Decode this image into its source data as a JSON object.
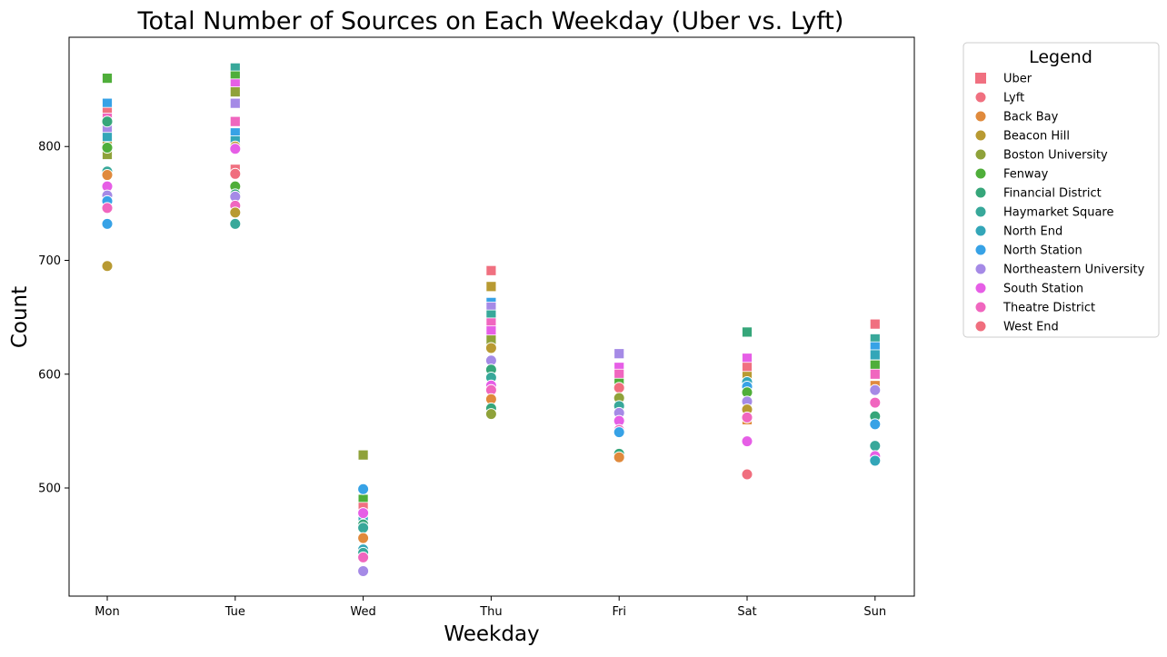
{
  "chart_data": {
    "type": "scatter",
    "title": "Total Number of Sources on Each Weekday (Uber vs. Lyft)",
    "xlabel": "Weekday",
    "ylabel": "Count",
    "categories": [
      "Mon",
      "Tue",
      "Wed",
      "Thu",
      "Fri",
      "Sat",
      "Sun"
    ],
    "ylim": [
      405,
      896
    ],
    "yticks": [
      500,
      600,
      700,
      800
    ],
    "grid": false,
    "legend": {
      "title": "Legend",
      "placement": "outside-right",
      "entries": [
        {
          "label": "Uber",
          "marker": "square",
          "color": "#f07080"
        },
        {
          "label": "Lyft",
          "marker": "circle",
          "color": "#f07080"
        },
        {
          "label": "Back Bay",
          "marker": "circle",
          "color": "#e08a3c"
        },
        {
          "label": "Beacon Hill",
          "marker": "circle",
          "color": "#b89a32"
        },
        {
          "label": "Boston University",
          "marker": "circle",
          "color": "#8fa23a"
        },
        {
          "label": "Fenway",
          "marker": "circle",
          "color": "#4fae3a"
        },
        {
          "label": "Financial District",
          "marker": "circle",
          "color": "#36a67a"
        },
        {
          "label": "Haymarket Square",
          "marker": "circle",
          "color": "#38a89a"
        },
        {
          "label": "North End",
          "marker": "circle",
          "color": "#33a6b8"
        },
        {
          "label": "North Station",
          "marker": "circle",
          "color": "#37a2e6"
        },
        {
          "label": "Northeastern University",
          "marker": "circle",
          "color": "#a58ae6"
        },
        {
          "label": "South Station",
          "marker": "circle",
          "color": "#e65ee6"
        },
        {
          "label": "Theatre District",
          "marker": "circle",
          "color": "#f066bf"
        },
        {
          "label": "West End",
          "marker": "circle",
          "color": "#f06e7e"
        }
      ]
    },
    "series": [
      {
        "name": "Uber",
        "marker": "square",
        "points": [
          {
            "x": "Mon",
            "y": 860,
            "color": "#4fae3a"
          },
          {
            "x": "Mon",
            "y": 838,
            "color": "#37a2e6"
          },
          {
            "x": "Mon",
            "y": 830,
            "color": "#f07080"
          },
          {
            "x": "Mon",
            "y": 825,
            "color": "#f066bf"
          },
          {
            "x": "Mon",
            "y": 815,
            "color": "#a58ae6"
          },
          {
            "x": "Mon",
            "y": 808,
            "color": "#33a6b8"
          },
          {
            "x": "Mon",
            "y": 800,
            "color": "#b89a32"
          },
          {
            "x": "Mon",
            "y": 793,
            "color": "#8fa23a"
          },
          {
            "x": "Tue",
            "y": 869,
            "color": "#38a89a"
          },
          {
            "x": "Tue",
            "y": 862,
            "color": "#4fae3a"
          },
          {
            "x": "Tue",
            "y": 855,
            "color": "#e65ee6"
          },
          {
            "x": "Tue",
            "y": 848,
            "color": "#8fa23a"
          },
          {
            "x": "Tue",
            "y": 838,
            "color": "#a58ae6"
          },
          {
            "x": "Tue",
            "y": 822,
            "color": "#f066bf"
          },
          {
            "x": "Tue",
            "y": 812,
            "color": "#37a2e6"
          },
          {
            "x": "Tue",
            "y": 805,
            "color": "#33a6b8"
          },
          {
            "x": "Tue",
            "y": 780,
            "color": "#f07080"
          },
          {
            "x": "Wed",
            "y": 529,
            "color": "#8fa23a"
          },
          {
            "x": "Wed",
            "y": 490,
            "color": "#4fae3a"
          },
          {
            "x": "Wed",
            "y": 483,
            "color": "#f07080"
          },
          {
            "x": "Wed",
            "y": 475,
            "color": "#33a6b8"
          },
          {
            "x": "Thu",
            "y": 691,
            "color": "#f07080"
          },
          {
            "x": "Thu",
            "y": 677,
            "color": "#b89a32"
          },
          {
            "x": "Thu",
            "y": 663,
            "color": "#37a2e6"
          },
          {
            "x": "Thu",
            "y": 659,
            "color": "#a58ae6"
          },
          {
            "x": "Thu",
            "y": 652,
            "color": "#38a89a"
          },
          {
            "x": "Thu",
            "y": 645,
            "color": "#f066bf"
          },
          {
            "x": "Thu",
            "y": 638,
            "color": "#e65ee6"
          },
          {
            "x": "Thu",
            "y": 630,
            "color": "#8fa23a"
          },
          {
            "x": "Fri",
            "y": 618,
            "color": "#a58ae6"
          },
          {
            "x": "Fri",
            "y": 606,
            "color": "#e65ee6"
          },
          {
            "x": "Fri",
            "y": 600,
            "color": "#f066bf"
          },
          {
            "x": "Fri",
            "y": 592,
            "color": "#4fae3a"
          },
          {
            "x": "Sat",
            "y": 637,
            "color": "#36a67a"
          },
          {
            "x": "Sat",
            "y": 614,
            "color": "#e65ee6"
          },
          {
            "x": "Sat",
            "y": 606,
            "color": "#f07080"
          },
          {
            "x": "Sat",
            "y": 598,
            "color": "#b89a32"
          },
          {
            "x": "Sat",
            "y": 560,
            "color": "#e08a3c"
          },
          {
            "x": "Sun",
            "y": 644,
            "color": "#f07080"
          },
          {
            "x": "Sun",
            "y": 631,
            "color": "#38a89a"
          },
          {
            "x": "Sun",
            "y": 624,
            "color": "#37a2e6"
          },
          {
            "x": "Sun",
            "y": 617,
            "color": "#33a6b8"
          },
          {
            "x": "Sun",
            "y": 608,
            "color": "#4fae3a"
          },
          {
            "x": "Sun",
            "y": 600,
            "color": "#f066bf"
          },
          {
            "x": "Sun",
            "y": 590,
            "color": "#e08a3c"
          }
        ]
      },
      {
        "name": "Lyft",
        "marker": "circle",
        "points": [
          {
            "x": "Mon",
            "y": 822,
            "color": "#36a67a"
          },
          {
            "x": "Mon",
            "y": 799,
            "color": "#4fae3a"
          },
          {
            "x": "Mon",
            "y": 778,
            "color": "#38a89a"
          },
          {
            "x": "Mon",
            "y": 775,
            "color": "#e08a3c"
          },
          {
            "x": "Mon",
            "y": 765,
            "color": "#e65ee6"
          },
          {
            "x": "Mon",
            "y": 757,
            "color": "#a58ae6"
          },
          {
            "x": "Mon",
            "y": 752,
            "color": "#37a2e6"
          },
          {
            "x": "Mon",
            "y": 746,
            "color": "#f066bf"
          },
          {
            "x": "Mon",
            "y": 732,
            "color": "#37a2e6"
          },
          {
            "x": "Mon",
            "y": 695,
            "color": "#b89a32"
          },
          {
            "x": "Tue",
            "y": 800,
            "color": "#b89a32"
          },
          {
            "x": "Tue",
            "y": 798,
            "color": "#e65ee6"
          },
          {
            "x": "Tue",
            "y": 776,
            "color": "#f06e7e"
          },
          {
            "x": "Tue",
            "y": 765,
            "color": "#4fae3a"
          },
          {
            "x": "Tue",
            "y": 758,
            "color": "#36a67a"
          },
          {
            "x": "Tue",
            "y": 756,
            "color": "#a58ae6"
          },
          {
            "x": "Tue",
            "y": 748,
            "color": "#f066bf"
          },
          {
            "x": "Tue",
            "y": 742,
            "color": "#b89a32"
          },
          {
            "x": "Tue",
            "y": 732,
            "color": "#38a89a"
          },
          {
            "x": "Wed",
            "y": 499,
            "color": "#37a2e6"
          },
          {
            "x": "Wed",
            "y": 478,
            "color": "#e65ee6"
          },
          {
            "x": "Wed",
            "y": 468,
            "color": "#36a67a"
          },
          {
            "x": "Wed",
            "y": 465,
            "color": "#38a89a"
          },
          {
            "x": "Wed",
            "y": 456,
            "color": "#e08a3c"
          },
          {
            "x": "Wed",
            "y": 446,
            "color": "#33a6b8"
          },
          {
            "x": "Wed",
            "y": 443,
            "color": "#38a89a"
          },
          {
            "x": "Wed",
            "y": 439,
            "color": "#f066bf"
          },
          {
            "x": "Wed",
            "y": 427,
            "color": "#a58ae6"
          },
          {
            "x": "Thu",
            "y": 623,
            "color": "#b89a32"
          },
          {
            "x": "Thu",
            "y": 612,
            "color": "#a58ae6"
          },
          {
            "x": "Thu",
            "y": 604,
            "color": "#36a67a"
          },
          {
            "x": "Thu",
            "y": 597,
            "color": "#38a89a"
          },
          {
            "x": "Thu",
            "y": 590,
            "color": "#e65ee6"
          },
          {
            "x": "Thu",
            "y": 586,
            "color": "#f066bf"
          },
          {
            "x": "Thu",
            "y": 578,
            "color": "#e08a3c"
          },
          {
            "x": "Thu",
            "y": 570,
            "color": "#36a67a"
          },
          {
            "x": "Thu",
            "y": 565,
            "color": "#8fa23a"
          },
          {
            "x": "Fri",
            "y": 588,
            "color": "#f06e7e"
          },
          {
            "x": "Fri",
            "y": 579,
            "color": "#8fa23a"
          },
          {
            "x": "Fri",
            "y": 572,
            "color": "#38a89a"
          },
          {
            "x": "Fri",
            "y": 566,
            "color": "#a58ae6"
          },
          {
            "x": "Fri",
            "y": 559,
            "color": "#e65ee6"
          },
          {
            "x": "Fri",
            "y": 551,
            "color": "#f066bf"
          },
          {
            "x": "Fri",
            "y": 549,
            "color": "#37a2e6"
          },
          {
            "x": "Fri",
            "y": 530,
            "color": "#36a67a"
          },
          {
            "x": "Fri",
            "y": 527,
            "color": "#e08a3c"
          },
          {
            "x": "Sat",
            "y": 593,
            "color": "#33a6b8"
          },
          {
            "x": "Sat",
            "y": 589,
            "color": "#37a2e6"
          },
          {
            "x": "Sat",
            "y": 584,
            "color": "#4fae3a"
          },
          {
            "x": "Sat",
            "y": 576,
            "color": "#a58ae6"
          },
          {
            "x": "Sat",
            "y": 569,
            "color": "#b89a32"
          },
          {
            "x": "Sat",
            "y": 562,
            "color": "#f066bf"
          },
          {
            "x": "Sat",
            "y": 541,
            "color": "#e65ee6"
          },
          {
            "x": "Sat",
            "y": 512,
            "color": "#f06e7e"
          },
          {
            "x": "Sun",
            "y": 586,
            "color": "#a58ae6"
          },
          {
            "x": "Sun",
            "y": 575,
            "color": "#f066bf"
          },
          {
            "x": "Sun",
            "y": 563,
            "color": "#36a67a"
          },
          {
            "x": "Sun",
            "y": 556,
            "color": "#37a2e6"
          },
          {
            "x": "Sun",
            "y": 537,
            "color": "#38a89a"
          },
          {
            "x": "Sun",
            "y": 528,
            "color": "#e65ee6"
          },
          {
            "x": "Sun",
            "y": 524,
            "color": "#33a6b8"
          }
        ]
      }
    ]
  }
}
